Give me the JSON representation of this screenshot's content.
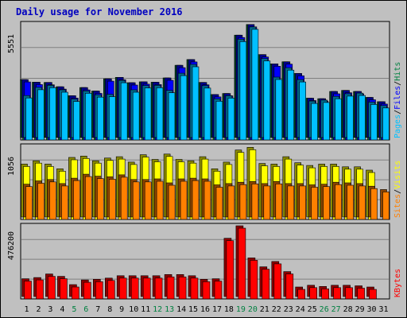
{
  "chart_data": {
    "type": "bar",
    "title": "Daily usage for November 2016",
    "categories": [
      "1",
      "2",
      "3",
      "4",
      "5",
      "6",
      "7",
      "8",
      "9",
      "10",
      "11",
      "12",
      "13",
      "14",
      "15",
      "16",
      "17",
      "18",
      "19",
      "20",
      "21",
      "22",
      "23",
      "24",
      "25",
      "26",
      "27",
      "28",
      "29",
      "30",
      "31"
    ],
    "weekend_days": [
      "5",
      "6",
      "12",
      "13",
      "19",
      "20",
      "26",
      "27"
    ],
    "colors": {
      "hits": "#008040",
      "files": "#0000ff",
      "pages": "#00c0ff",
      "visits": "#ffff00",
      "sites": "#ff8000",
      "kbytes": "#ff0000",
      "weekday_label": "#000000",
      "weekend_label": "#008040",
      "title": "#0000c0"
    },
    "panels": [
      {
        "name": "hits-files-pages",
        "ymax_label": "5551",
        "ymax": 5551,
        "legend": [
          {
            "text": "Pages",
            "color": "#00c0ff"
          },
          {
            "text": "Files",
            "color": "#0000ff"
          },
          {
            "text": "Hits",
            "color": "#008040"
          }
        ],
        "series": [
          {
            "name": "Hits",
            "values": [
              2830,
              2700,
              2690,
              2480,
              2040,
              2440,
              2270,
              2870,
              2940,
              2680,
              2720,
              2700,
              2910,
              3530,
              3810,
              2690,
              2100,
              2150,
              5000,
              5520,
              4050,
              3600,
              3700,
              3130,
              1920,
              1900,
              2250,
              2300,
              2250,
              1960,
              1750
            ]
          },
          {
            "name": "Files",
            "values": [
              2830,
              2700,
              2690,
              2480,
              2040,
              2440,
              2270,
              2870,
              2940,
              2680,
              2720,
              2700,
              2910,
              3530,
              3810,
              2690,
              2100,
              2150,
              5000,
              5520,
              4050,
              3600,
              3700,
              3130,
              1920,
              1900,
              2250,
              2300,
              2250,
              1960,
              1750
            ]
          },
          {
            "name": "Pages",
            "values": [
              2050,
              2450,
              2550,
              2330,
              1880,
              2280,
              2090,
              2110,
              2790,
              2330,
              2540,
              2550,
              2300,
              3140,
              3570,
              2530,
              1890,
              2040,
              4800,
              5400,
              3860,
              2950,
              3410,
              2830,
              1780,
              1830,
              2010,
              2140,
              2170,
              1730,
              1560
            ]
          }
        ]
      },
      {
        "name": "visits-sites",
        "ymax_label": "1056",
        "ymax": 1056,
        "legend": [
          {
            "text": "Sites",
            "color": "#ff8000"
          },
          {
            "text": "Visits",
            "color": "#ffff00"
          }
        ],
        "series": [
          {
            "name": "Visits",
            "values": [
              790,
              840,
              790,
              720,
              890,
              910,
              840,
              880,
              900,
              820,
              930,
              860,
              940,
              860,
              840,
              900,
              720,
              820,
              1000,
              1040,
              800,
              790,
              900,
              810,
              770,
              790,
              790,
              750,
              750,
              700,
              0
            ]
          },
          {
            "name": "Sites",
            "values": [
              490,
              540,
              560,
              500,
              580,
              640,
              610,
              600,
              630,
              560,
              560,
              570,
              510,
              570,
              580,
              570,
              480,
              500,
              520,
              530,
              500,
              530,
              500,
              500,
              480,
              490,
              520,
              510,
              500,
              460,
              410
            ]
          }
        ]
      },
      {
        "name": "kbytes",
        "ymax_label": "476200",
        "ymax": 476200,
        "legend": [
          {
            "text": "KBytes",
            "color": "#ff0000"
          }
        ],
        "series": [
          {
            "name": "KBytes",
            "values": [
              120000,
              128000,
              152000,
              136000,
              80000,
              112000,
              116000,
              124000,
              140000,
              140000,
              140000,
              140000,
              148000,
              148000,
              140000,
              116000,
              120000,
              392000,
              476200,
              260000,
              200000,
              236000,
              168000,
              64000,
              76000,
              68000,
              76000,
              76000,
              72000,
              64000,
              0
            ]
          }
        ]
      }
    ]
  }
}
